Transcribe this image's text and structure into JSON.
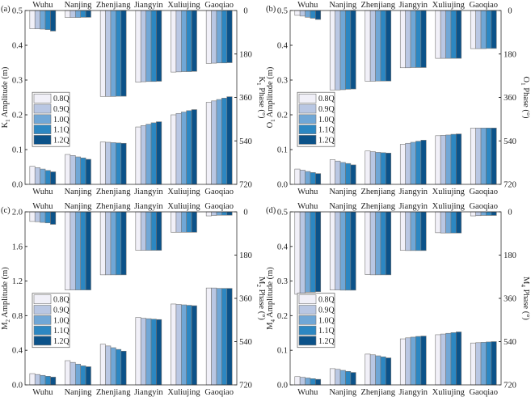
{
  "chart_data": [
    {
      "type": "bar",
      "panel_label": "(a)",
      "categories": [
        "Wuhu",
        "Nanjing",
        "Zhenjiang",
        "Jiangyin",
        "Xuliujing",
        "Gaoqiao"
      ],
      "legend": [
        "0.8Q",
        "0.9Q",
        "1.0Q",
        "1.1Q",
        "1.2Q"
      ],
      "ylabel": {
        "pre": "K",
        "sub": "1",
        "post": " Amplitude (m)"
      },
      "y2label": {
        "pre": "K",
        "sub": "1",
        "post": " Phase (°)"
      },
      "ylim": [
        0,
        0.5
      ],
      "yticks": [
        "0.0",
        "0.1",
        "0.2",
        "0.3",
        "0.4",
        "0.5"
      ],
      "y2lim": [
        0,
        720
      ],
      "y2ticks": [
        "0",
        "180",
        "360",
        "540",
        "720"
      ],
      "amplitude": [
        [
          0.052,
          0.048,
          0.044,
          0.04,
          0.036
        ],
        [
          0.086,
          0.083,
          0.079,
          0.076,
          0.072
        ],
        [
          0.122,
          0.121,
          0.12,
          0.119,
          0.118
        ],
        [
          0.165,
          0.169,
          0.173,
          0.177,
          0.18
        ],
        [
          0.2,
          0.204,
          0.208,
          0.212,
          0.215
        ],
        [
          0.236,
          0.24,
          0.244,
          0.248,
          0.252
        ]
      ],
      "phase": [
        [
          76,
          76,
          77,
          79,
          85
        ],
        [
          29,
          29,
          29,
          28,
          28
        ],
        [
          356,
          356,
          356,
          355,
          355
        ],
        [
          297,
          295,
          294,
          294,
          293
        ],
        [
          255,
          254,
          253,
          253,
          252
        ],
        [
          219,
          218,
          217,
          217,
          216
        ]
      ]
    },
    {
      "type": "bar",
      "panel_label": "(b)",
      "categories": [
        "Wuhu",
        "Nanjing",
        "Zhenjiang",
        "Jiangyin",
        "Xuliujing",
        "Gaoqiao"
      ],
      "legend": [
        "0.8Q",
        "0.9Q",
        "1.0Q",
        "1.1Q",
        "1.2Q"
      ],
      "ylabel": {
        "pre": "O",
        "sub": "1",
        "post": " Amplitude (m)"
      },
      "y2label": {
        "pre": "O",
        "sub": "1",
        "post": " Phase (°)"
      },
      "ylim": [
        0,
        0.5
      ],
      "yticks": [
        "0.0",
        "0.1",
        "0.2",
        "0.3",
        "0.4",
        "0.5"
      ],
      "y2lim": [
        0,
        720
      ],
      "y2ticks": [
        "0",
        "180",
        "360",
        "540",
        "720"
      ],
      "amplitude": [
        [
          0.044,
          0.041,
          0.037,
          0.034,
          0.031
        ],
        [
          0.071,
          0.067,
          0.063,
          0.06,
          0.056
        ],
        [
          0.096,
          0.094,
          0.092,
          0.091,
          0.09
        ],
        [
          0.115,
          0.118,
          0.121,
          0.124,
          0.127
        ],
        [
          0.14,
          0.141,
          0.142,
          0.144,
          0.145
        ],
        [
          0.162,
          0.162,
          0.162,
          0.162,
          0.162
        ]
      ],
      "phase": [
        [
          20,
          23,
          28,
          32,
          37
        ],
        [
          329,
          329,
          328,
          326,
          325
        ],
        [
          293,
          293,
          292,
          292,
          292
        ],
        [
          237,
          237,
          236,
          236,
          236
        ],
        [
          198,
          198,
          198,
          198,
          198
        ],
        [
          158,
          158,
          158,
          157,
          157
        ]
      ]
    },
    {
      "type": "bar",
      "panel_label": "(c)",
      "categories": [
        "Wuhu",
        "Nanjing",
        "Zhenjiang",
        "Jiangyin",
        "Xuliujing",
        "Gaoqiao"
      ],
      "legend": [
        "0.8Q",
        "0.9Q",
        "1.0Q",
        "1.1Q",
        "1.2Q"
      ],
      "ylabel": {
        "pre": "M",
        "sub": "2",
        "post": " Amplitude (m)"
      },
      "y2label": {
        "pre": "M",
        "sub": "2",
        "post": " Phase (°)"
      },
      "ylim": [
        0,
        2.0
      ],
      "yticks": [
        "0.0",
        "0.4",
        "0.8",
        "1.2",
        "1.6",
        "2.0"
      ],
      "y2lim": [
        0,
        720
      ],
      "y2ticks": [
        "0",
        "180",
        "360",
        "540",
        "720"
      ],
      "amplitude": [
        [
          0.13,
          0.12,
          0.11,
          0.1,
          0.09
        ],
        [
          0.28,
          0.26,
          0.24,
          0.22,
          0.21
        ],
        [
          0.47,
          0.45,
          0.43,
          0.41,
          0.39
        ],
        [
          0.78,
          0.77,
          0.765,
          0.76,
          0.755
        ],
        [
          0.935,
          0.93,
          0.925,
          0.92,
          0.915
        ],
        [
          1.12,
          1.12,
          1.115,
          1.115,
          1.115
        ]
      ],
      "phase": [
        [
          40,
          41,
          44,
          46,
          52
        ],
        [
          325,
          325,
          325,
          325,
          325
        ],
        [
          262,
          262,
          262,
          262,
          262
        ],
        [
          160,
          160,
          160,
          160,
          160
        ],
        [
          85,
          85,
          85,
          85,
          85
        ],
        [
          17,
          15,
          14,
          14,
          14
        ]
      ]
    },
    {
      "type": "bar",
      "panel_label": "(d)",
      "categories": [
        "Wuhu",
        "Nanjing",
        "Zhenjiang",
        "Jiangyin",
        "Xuliujing",
        "Gaoqiao"
      ],
      "legend": [
        "0.8Q",
        "0.9Q",
        "1.0Q",
        "1.1Q",
        "1.2Q"
      ],
      "ylabel": {
        "pre": "M",
        "sub": "4",
        "post": " Amplitude (m)"
      },
      "y2label": {
        "pre": "M",
        "sub": "4",
        "post": " Phase (°)"
      },
      "ylim": [
        0,
        0.5
      ],
      "yticks": [
        "0.0",
        "0.1",
        "0.2",
        "0.3",
        "0.4",
        "0.5"
      ],
      "y2lim": [
        0,
        720
      ],
      "y2ticks": [
        "0",
        "180",
        "360",
        "540",
        "720"
      ],
      "amplitude": [
        [
          0.024,
          0.022,
          0.02,
          0.018,
          0.016
        ],
        [
          0.047,
          0.045,
          0.042,
          0.039,
          0.036
        ],
        [
          0.089,
          0.087,
          0.084,
          0.081,
          0.078
        ],
        [
          0.133,
          0.136,
          0.138,
          0.14,
          0.141
        ],
        [
          0.145,
          0.147,
          0.149,
          0.151,
          0.153
        ],
        [
          0.121,
          0.122,
          0.123,
          0.124,
          0.125
        ]
      ],
      "phase": [
        [
          343,
          344,
          334,
          334,
          332
        ],
        [
          325,
          325,
          326,
          326,
          326
        ],
        [
          261,
          262,
          262,
          262,
          262
        ],
        [
          160,
          161,
          161,
          161,
          161
        ],
        [
          87,
          88,
          88,
          88,
          88
        ],
        [
          17,
          16,
          15,
          15,
          15
        ]
      ]
    }
  ],
  "colors": [
    "#f1f0f8",
    "#b9c7e3",
    "#70a7d6",
    "#2c87c2",
    "#0b5289"
  ]
}
